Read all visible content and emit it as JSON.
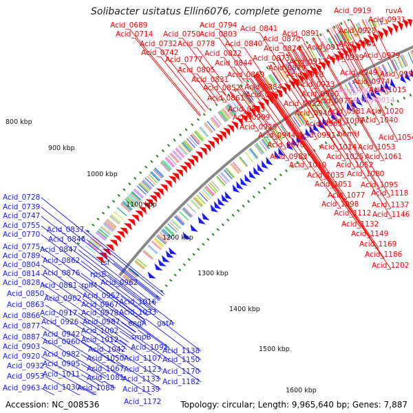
{
  "title": "Solibacter usitatus Ellin6076, complete genome",
  "footer": {
    "accession": "Accession: NC_008536",
    "summary": "Topology: circular; Length: 9,965,640 bp; Genes: 7,887"
  },
  "colors": {
    "forward": "#ff0000",
    "reverse": "#1a1aff",
    "rna": "#ff88cc",
    "backbone": "#888888",
    "gc_tick": "#228822"
  },
  "kbp_markers": [
    "800 kbp",
    "900 kbp",
    "1000 kbp",
    "1100 kbp",
    "1200 kbp",
    "1300 kbp",
    "1400 kbp",
    "1500 kbp",
    "1600 kbp"
  ],
  "forward_labels": [
    "Acid_0689",
    "Acid_0714",
    "Acid_0750",
    "Acid_0732",
    "Acid_0742",
    "Acid_0794",
    "Acid_0803",
    "Acid_0778",
    "Acid_0777",
    "Acid_0822",
    "Acid_0805",
    "Acid_0831",
    "Acid_0852",
    "Acid_0861",
    "Acid_0841",
    "Acid_0840",
    "Acid_0844",
    "Acid_0870",
    "Acid_0874",
    "Acid_0873",
    "Acid_0879",
    "Acid_0869",
    "Acid_0884",
    "Acid_0866",
    "Acid_0885",
    "Acid_0909",
    "Acid_0925",
    "Acid_0944",
    "Acid_0970",
    "Acid_0983",
    "Acid_0891",
    "Acid_0913",
    "Acid_0912",
    "Acid_0918",
    "Acid_0923",
    "Acid_0930",
    "Acid_0922",
    "Acid_0940",
    "Acid_0965",
    "Acid_0919",
    "ruvA",
    "Acid_0931",
    "Acid_0928",
    "Acid_0941",
    "Acid_0939",
    "Acid_0979",
    "Acid_0949",
    "Acid_0974",
    "Acid_0993",
    "Acid_R0009",
    "Acid_R0014",
    "Acid_1015",
    "Acid_0975",
    "Acid_0981",
    "Acid_1020",
    "Acid_1003",
    "Acid_1040",
    "hemH",
    "Acid_0991",
    "Acid_1054",
    "Acid_1014",
    "Acid_1053",
    "Acid_1025",
    "Acid_1061",
    "Acid_1010",
    "Acid_1052",
    "Acid_1035",
    "Acid_1080",
    "Acid_1051",
    "Acid_1095",
    "Acid_1077",
    "Acid_1118",
    "Acid_1098",
    "Acid_1137",
    "Acid_1112",
    "Acid_1146",
    "Acid_1132",
    "Acid_1149",
    "Acid_1169",
    "Acid_1186",
    "Acid_1202"
  ],
  "reverse_labels": [
    "Acid_0728",
    "Acid_0739",
    "Acid_0747",
    "Acid_0755",
    "Acid_0770",
    "Acid_0837",
    "Acid_0846",
    "Acid_0775",
    "Acid_0789",
    "Acid_0847",
    "Acid_0804",
    "Acid_0862",
    "Acid_0814",
    "Acid_0876",
    "Acid_0828",
    "Acid_0881",
    "Acid_0850",
    "Acid_0902",
    "Acid_0863",
    "Acid_0866",
    "Acid_0917",
    "Acid_0877",
    "Acid_0926",
    "Acid_0887",
    "Acid_0942",
    "Acid_0903",
    "Acid_0960",
    "Acid_0920",
    "Acid_0982",
    "Acid_0932",
    "Acid_0995",
    "Acid_0953",
    "Acid_1011",
    "Acid_0963",
    "Acid_1030",
    "tsf",
    "rpsB",
    "rplM",
    "Acid_0962",
    "Acid_0952",
    "Acid_0967",
    "Acid_0978",
    "Acid_0987",
    "Acid_1002",
    "Acid_1012",
    "Acid_1016",
    "Acid_1033",
    "engA",
    "gatA",
    "smpB",
    "Acid_1042",
    "Acid_1050",
    "Acid_1067",
    "Acid_1081",
    "Acid_1088",
    "Acid_1091",
    "Acid_1107",
    "Acid_1123",
    "Acid_1133",
    "Acid_1139",
    "Acid_1138",
    "Acid_1150",
    "Acid_1170",
    "Acid_1182",
    "Acid_1172"
  ]
}
